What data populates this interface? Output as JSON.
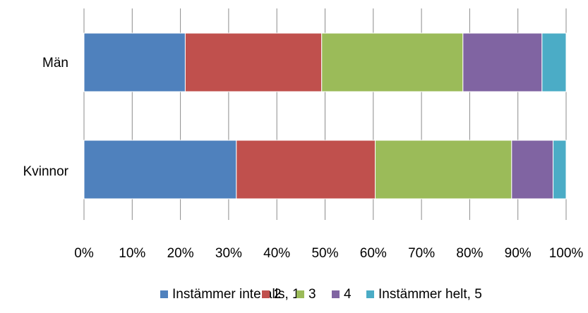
{
  "chart_data": {
    "type": "bar",
    "orientation": "horizontal",
    "stacked": "percent",
    "categories": [
      "Män",
      "Kvinnor"
    ],
    "series": [
      {
        "name": "Instämmer inte alls, 1",
        "color": "#4f81bd",
        "values": [
          21,
          31.6
        ]
      },
      {
        "name": "2",
        "color": "#c0504d",
        "values": [
          28.3,
          28.8
        ]
      },
      {
        "name": "3",
        "color": "#9bbb59",
        "values": [
          29.3,
          28.3
        ]
      },
      {
        "name": "4",
        "color": "#8064a2",
        "values": [
          16.4,
          8.6
        ]
      },
      {
        "name": "Instämmer helt, 5",
        "color": "#4bacc6",
        "values": [
          5,
          2.7
        ]
      }
    ],
    "xlim": [
      0,
      100
    ],
    "xticks": [
      "0%",
      "10%",
      "20%",
      "30%",
      "40%",
      "50%",
      "60%",
      "70%",
      "80%",
      "90%",
      "100%"
    ],
    "grid": "vertical",
    "legend": "bottom",
    "title": "",
    "xlabel": "",
    "ylabel": ""
  }
}
